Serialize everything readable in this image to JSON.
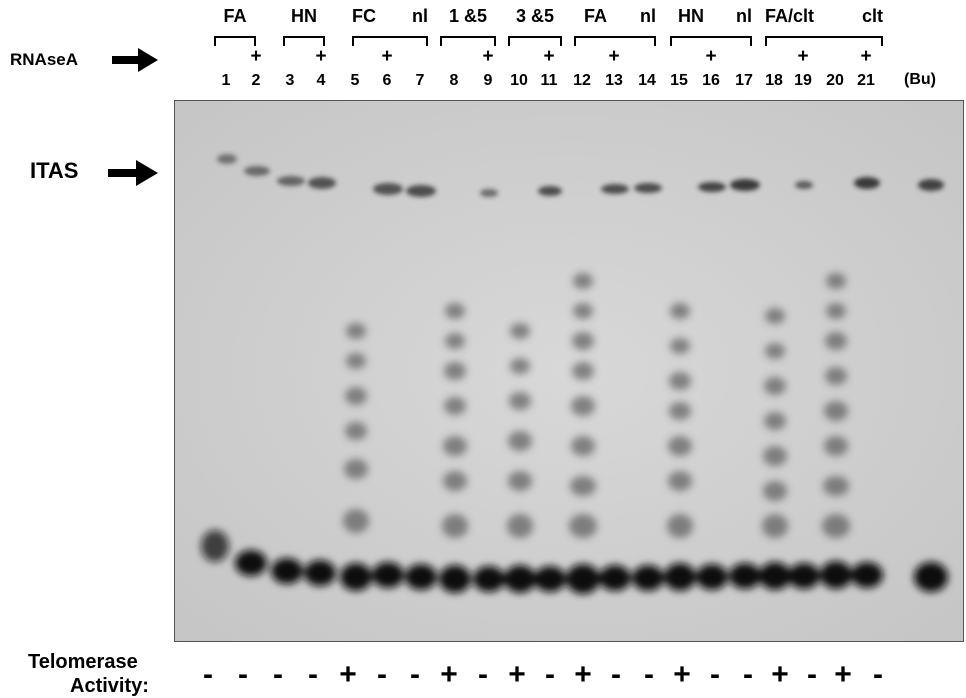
{
  "rnase_label": "RNAseA",
  "itas_label": "ITAS",
  "telomerase_label_line1": "Telomerase",
  "telomerase_label_line2": "Activity:",
  "bu_label": "(Bu)",
  "groups": [
    "FA",
    "HN",
    "FC",
    "nl",
    "1 &5",
    "3 &5",
    "FA",
    "nl",
    "HN",
    "nl",
    "FA/clt",
    "clt"
  ],
  "lanes": [
    "1",
    "2",
    "3",
    "4",
    "5",
    "6",
    "7",
    "8",
    "9",
    "10",
    "11",
    "12",
    "13",
    "14",
    "15",
    "16",
    "17",
    "18",
    "19",
    "20",
    "21"
  ],
  "rnase_marks": [
    "+",
    "+",
    "+",
    "+",
    "+",
    "+",
    "+",
    "+",
    "+"
  ],
  "activity": [
    "-",
    "-",
    "-",
    "-",
    "+",
    "-",
    "-",
    "+",
    "-",
    "+",
    "-",
    "+",
    "-",
    "-",
    "+",
    "-",
    "-",
    "+",
    "-",
    "+",
    "-"
  ],
  "colors": {
    "background": "#d6d6d6",
    "band": "#1a1a1a",
    "text": "#000000"
  }
}
